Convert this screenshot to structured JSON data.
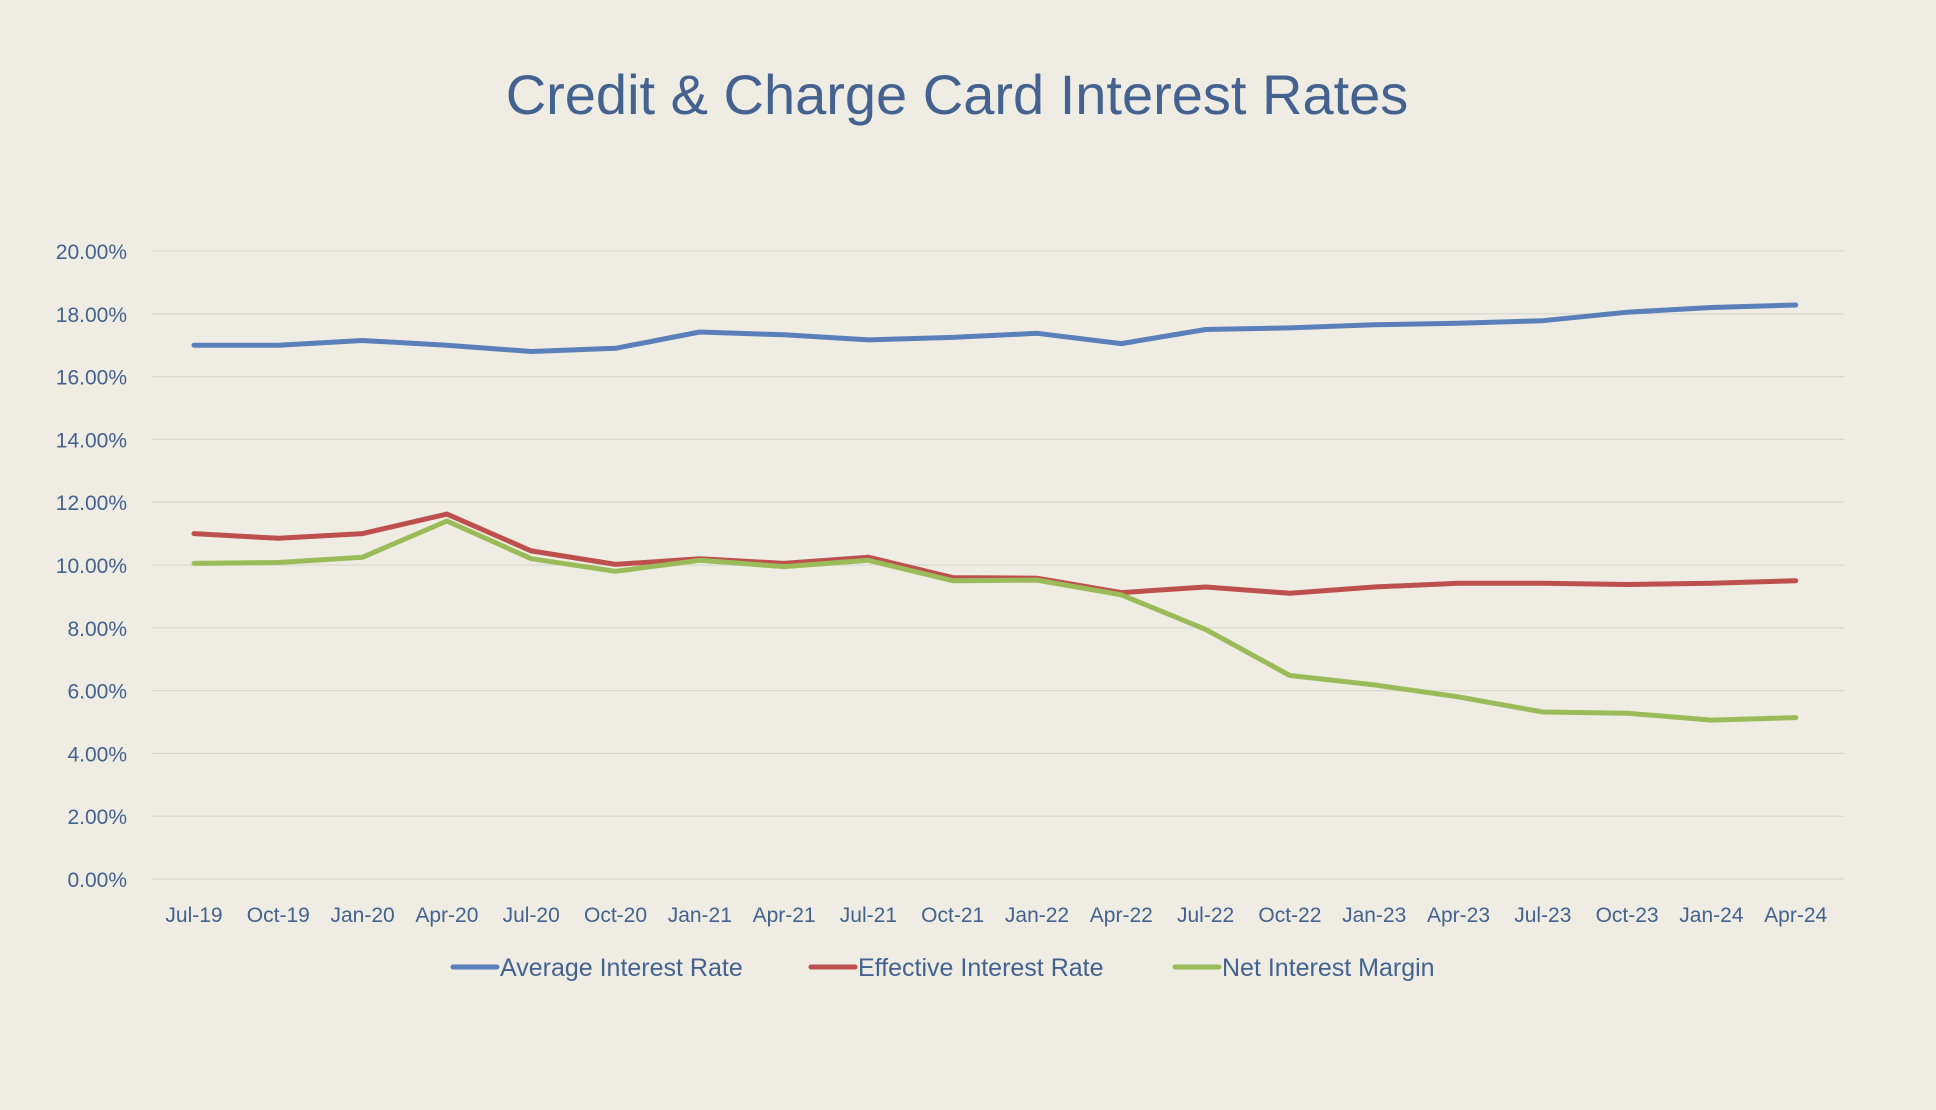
{
  "chart_data": {
    "type": "line",
    "title": "Credit & Charge Card Interest Rates",
    "xlabel": "",
    "ylabel": "",
    "categories": [
      "Jul-19",
      "Oct-19",
      "Jan-20",
      "Apr-20",
      "Jul-20",
      "Oct-20",
      "Jan-21",
      "Apr-21",
      "Jul-21",
      "Oct-21",
      "Jan-22",
      "Apr-22",
      "Jul-22",
      "Oct-22",
      "Jan-23",
      "Apr-23",
      "Jul-23",
      "Oct-23",
      "Jan-24",
      "Apr-24"
    ],
    "ylim": [
      0,
      20
    ],
    "y_ticks": [
      "0.00%",
      "2.00%",
      "4.00%",
      "6.00%",
      "8.00%",
      "10.00%",
      "12.00%",
      "14.00%",
      "16.00%",
      "18.00%",
      "20.00%"
    ],
    "grid": true,
    "legend_position": "bottom",
    "series": [
      {
        "name": "Average Interest Rate",
        "color": "#5b7fba",
        "values": [
          17.0,
          17.0,
          17.15,
          17.0,
          16.8,
          16.9,
          17.42,
          17.33,
          17.17,
          17.25,
          17.38,
          17.05,
          17.5,
          17.55,
          17.65,
          17.7,
          17.78,
          18.05,
          18.2,
          18.28
        ]
      },
      {
        "name": "Effective Interest Rate",
        "color": "#bd4f4c",
        "values": [
          11.0,
          10.85,
          11.0,
          11.62,
          10.45,
          10.02,
          10.2,
          10.05,
          10.25,
          9.6,
          9.58,
          9.12,
          9.3,
          9.1,
          9.3,
          9.42,
          9.42,
          9.38,
          9.42,
          9.5
        ]
      },
      {
        "name": "Net Interest Margin",
        "color": "#9bbb59",
        "values": [
          10.05,
          10.08,
          10.25,
          11.4,
          10.2,
          9.8,
          10.15,
          9.95,
          10.15,
          9.5,
          9.52,
          9.05,
          7.95,
          6.48,
          6.18,
          5.8,
          5.32,
          5.28,
          5.06,
          5.14
        ]
      }
    ]
  }
}
